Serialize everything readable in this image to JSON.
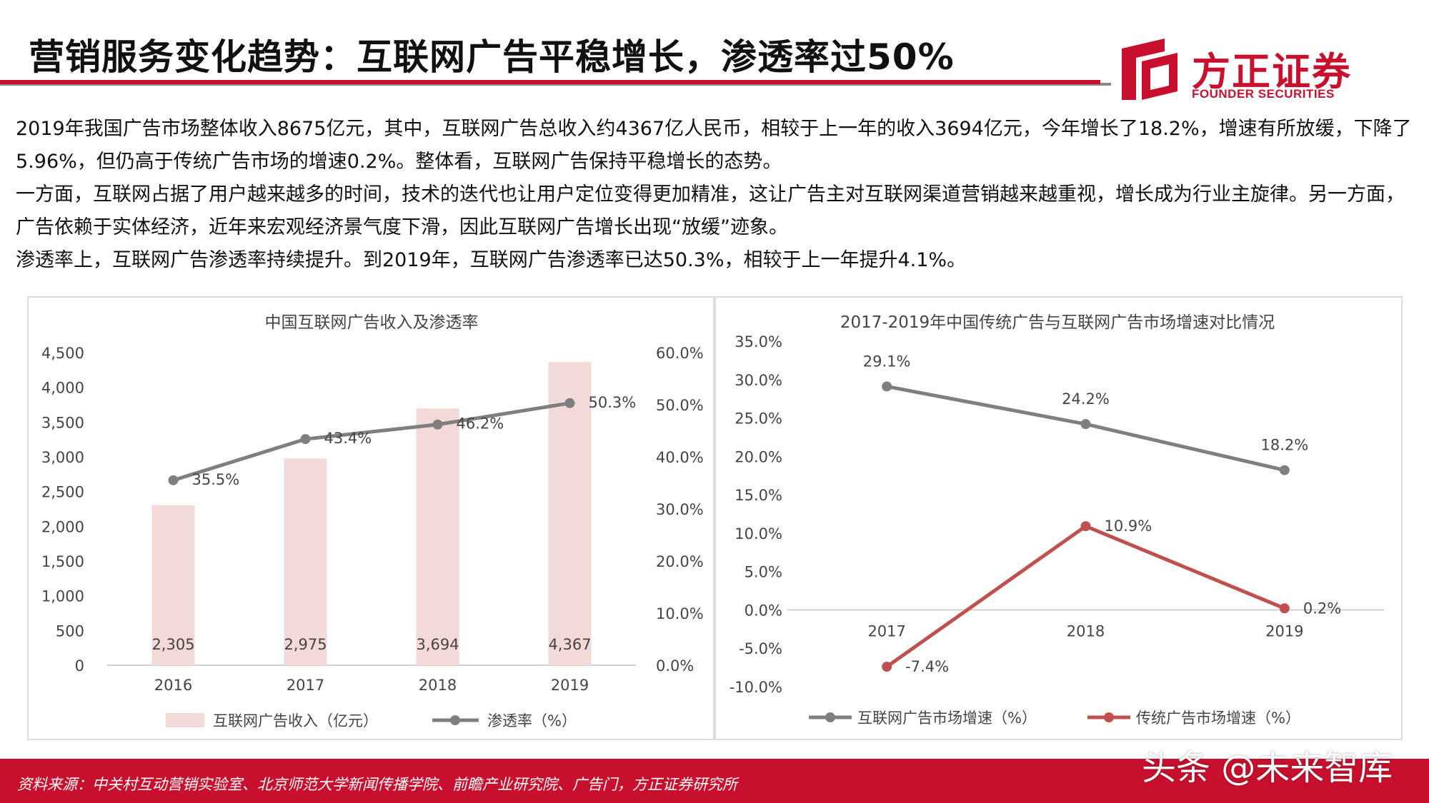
{
  "header": {
    "title": "营销服务变化趋势：互联网广告平稳增长，渗透率过50%"
  },
  "logo": {
    "name_cn": "方正证券",
    "name_en": "FOUNDER SECURITIES"
  },
  "body": {
    "paragraphs": [
      "2019年我国广告市场整体收入8675亿元，其中，互联网广告总收入约4367亿人民币，相较于上一年的收入3694亿元，今年增长了18.2%，增速有所放缓，下降了5.96%，但仍高于传统广告市场的增速0.2%。整体看，互联网广告保持平稳增长的态势。",
      "一方面，互联网占据了用户越来越多的时间，技术的迭代也让用户定位变得更加精准，这让广告主对互联网渠道营销越来越重视，增长成为行业主旋律。另一方面，广告依赖于实体经济，近年来宏观经济景气度下滑，因此互联网广告增长出现“放缓”迹象。",
      "渗透率上，互联网广告渗透率持续提升。到2019年，互联网广告渗透率已达50.3%，相较于上一年提升4.1%。"
    ]
  },
  "colors": {
    "brand_red": "#c8102e",
    "bar_pink": "#f4d9d9",
    "line_gray": "#7f7f7f",
    "line_red": "#c0504d"
  },
  "chart_data": [
    {
      "type": "bar",
      "title": "中国互联网广告收入及渗透率",
      "categories": [
        "2016",
        "2017",
        "2018",
        "2019"
      ],
      "series": [
        {
          "name": "互联网广告收入（亿元）",
          "type": "bar",
          "axis": "left",
          "values": [
            2305,
            2975,
            3694,
            4367
          ],
          "labels": [
            "2,305",
            "2,975",
            "3,694",
            "4,367"
          ]
        },
        {
          "name": "渗透率（%）",
          "type": "line",
          "axis": "right",
          "values": [
            35.5,
            43.4,
            46.2,
            50.3
          ],
          "labels": [
            "35.5%",
            "43.4%",
            "46.2%",
            "50.3%"
          ]
        }
      ],
      "ylim_left": [
        0,
        4500
      ],
      "yticks_left": [
        "0",
        "500",
        "1,000",
        "1,500",
        "2,000",
        "2,500",
        "3,000",
        "3,500",
        "4,000",
        "4,500"
      ],
      "ylim_right": [
        0,
        60
      ],
      "yticks_right": [
        "0.0%",
        "10.0%",
        "20.0%",
        "30.0%",
        "40.0%",
        "50.0%",
        "60.0%"
      ],
      "grid": false,
      "legend": "bottom"
    },
    {
      "type": "line",
      "title": "2017-2019年中国传统广告与互联网广告市场增速对比情况",
      "categories": [
        "2017",
        "2018",
        "2019"
      ],
      "series": [
        {
          "name": "互联网广告市场增速（%）",
          "values": [
            29.1,
            24.2,
            18.2
          ],
          "labels": [
            "29.1%",
            "24.2%",
            "18.2%"
          ]
        },
        {
          "name": "传统广告市场增速（%）",
          "values": [
            -7.4,
            10.9,
            0.2
          ],
          "labels": [
            "-7.4%",
            "10.9%",
            "0.2%"
          ]
        }
      ],
      "ylim": [
        -10,
        35
      ],
      "yticks": [
        "-10.0%",
        "-5.0%",
        "0.0%",
        "5.0%",
        "10.0%",
        "15.0%",
        "20.0%",
        "25.0%",
        "30.0%",
        "35.0%"
      ],
      "grid": false,
      "legend": "bottom"
    }
  ],
  "footer": {
    "source": "资料来源：中关村互动营销实验室、北京师范大学新闻传播学院、前瞻产业研究院、广告门，方正证券研究所",
    "watermark": "头条 @未来智库"
  }
}
